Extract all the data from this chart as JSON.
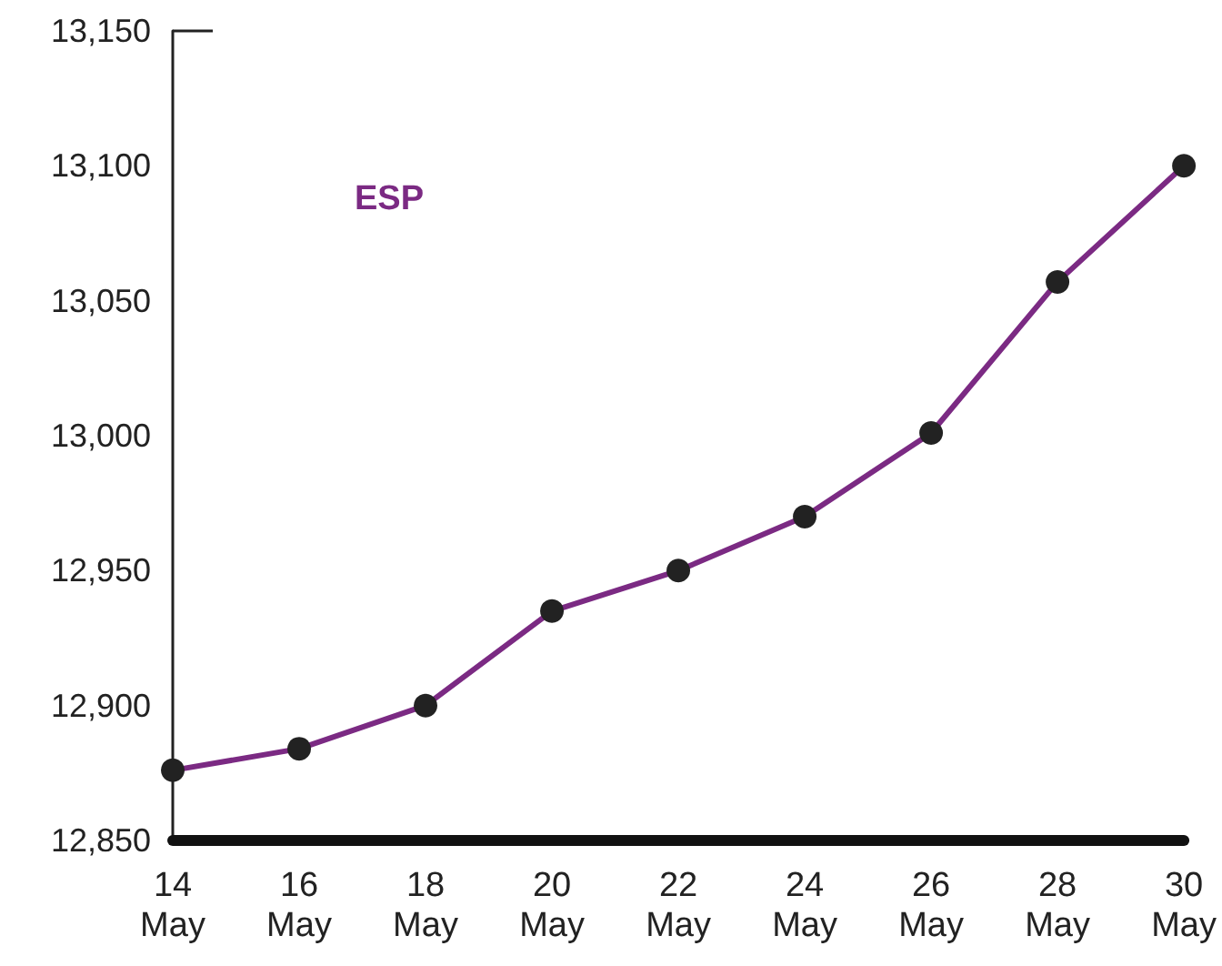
{
  "chart_data": {
    "type": "line",
    "categories": [
      "14 May",
      "16 May",
      "18 May",
      "20 May",
      "22 May",
      "24 May",
      "26 May",
      "28 May",
      "30 May"
    ],
    "series": [
      {
        "name": "ESP",
        "color": "#7b2a83",
        "values": [
          12876,
          12884,
          12900,
          12935,
          12950,
          12970,
          13001,
          13057,
          13100
        ]
      }
    ],
    "ylim": [
      12850,
      13150
    ],
    "yticks": [
      {
        "value": 12850,
        "label": "12,850"
      },
      {
        "value": 12900,
        "label": "12,900"
      },
      {
        "value": 12950,
        "label": "12,950"
      },
      {
        "value": 13000,
        "label": "13,000"
      },
      {
        "value": 13050,
        "label": "13,050"
      },
      {
        "value": 13100,
        "label": "13,100"
      },
      {
        "value": 13150,
        "label": "13,150"
      }
    ],
    "grid": false,
    "legend": "top left",
    "marker": "circle",
    "line_style": "solid"
  }
}
